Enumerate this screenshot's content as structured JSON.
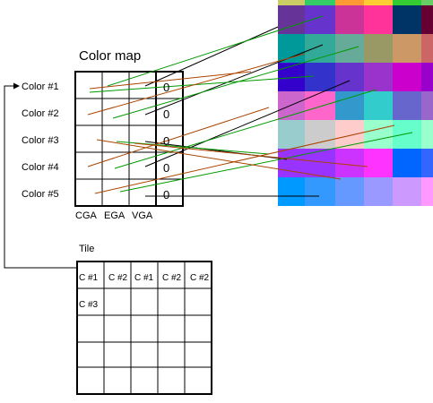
{
  "colormap_title": "Color map",
  "color_labels": [
    "Color #1",
    "Color #2",
    "Color #3",
    "Color #4",
    "Color #5"
  ],
  "column_labels": [
    "CGA",
    "EGA",
    "VGA"
  ],
  "vga_values": [
    "0",
    "0",
    "0",
    "0",
    "0"
  ],
  "tile_title": "Tile",
  "tile_rows": [
    [
      "C #1",
      "C #2",
      "C #1",
      "C #2",
      "C #2"
    ],
    [
      "C #3",
      "",
      "",
      "",
      ""
    ],
    [
      "",
      "",
      "",
      "",
      ""
    ],
    [
      "",
      "",
      "",
      "",
      ""
    ],
    [
      "",
      "",
      "",
      "",
      ""
    ]
  ],
  "palette_rows": [
    [
      "#cccc66",
      "#33cc66",
      "#ff9933",
      "#ffcc33",
      "#33cc33",
      "#66cc66"
    ],
    [
      "#663399",
      "#6633cc",
      "#cc3399",
      "#ff3399",
      "#003366",
      "#660033"
    ],
    [
      "#009999",
      "#33aa99",
      "#66aa99",
      "#999966",
      "#cc9966",
      "#cc6666"
    ],
    [
      "#3300cc",
      "#3333cc",
      "#6633cc",
      "#9933cc",
      "#cc00cc",
      "#9900cc"
    ],
    [
      "#cc66cc",
      "#ff66cc",
      "#3399cc",
      "#33cccc",
      "#6666cc",
      "#9966cc"
    ],
    [
      "#99cccc",
      "#cccccc",
      "#ffcccc",
      "#99ffcc",
      "#66ffcc",
      "#99ffcc"
    ],
    [
      "#9933ff",
      "#9933ff",
      "#cc33ff",
      "#ff33ff",
      "#0066ff",
      "#3366ff"
    ],
    [
      "#0099ff",
      "#3399ff",
      "#6699ff",
      "#9999ff",
      "#cc99ff",
      "#ff99ff"
    ]
  ],
  "connector_colors": {
    "green": "#009900",
    "brown": "#aa4400",
    "black": "#000000"
  }
}
